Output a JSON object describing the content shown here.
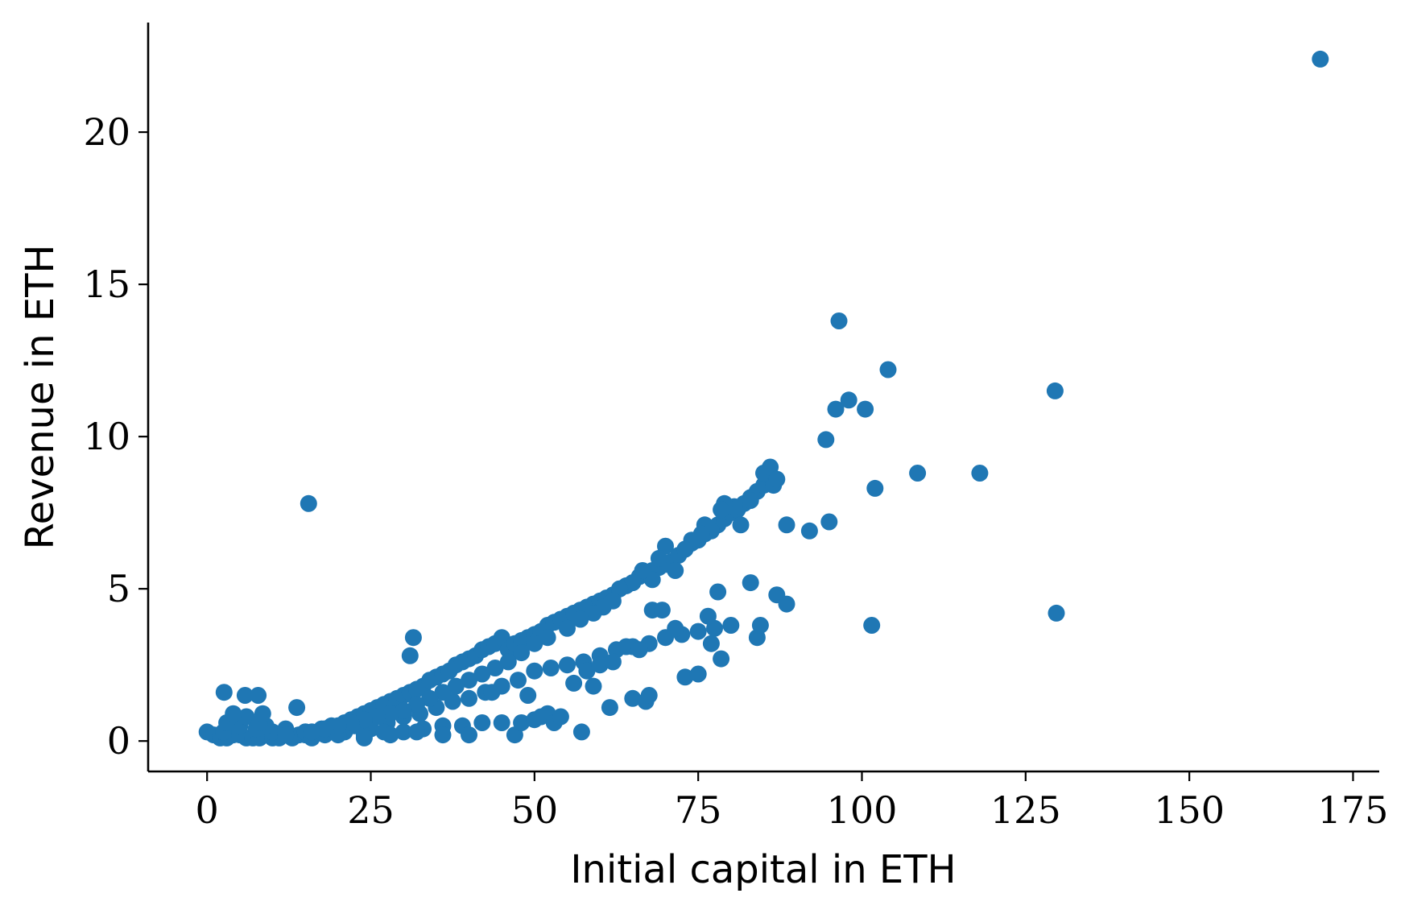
{
  "chart_data": {
    "type": "scatter",
    "title": "",
    "xlabel": "Initial capital in ETH",
    "ylabel": "Revenue in ETH",
    "xlim": [
      -9,
      179
    ],
    "ylim": [
      -1,
      23.6
    ],
    "xticks": [
      0,
      25,
      50,
      75,
      100,
      125,
      150,
      175
    ],
    "yticks": [
      0,
      5,
      10,
      15,
      20
    ],
    "xtick_labels": [
      "0",
      "25",
      "50",
      "75",
      "100",
      "125",
      "150",
      "175"
    ],
    "ytick_labels": [
      "0",
      "5",
      "10",
      "15",
      "20"
    ],
    "grid": false,
    "legend": "none",
    "color": "#1f77b4",
    "series": [
      {
        "x": [
          0.0,
          1.0,
          2.0,
          3.0,
          4.0,
          5.0,
          6.0,
          7.0,
          8.0,
          9.0,
          10.0,
          11.0,
          12.0,
          13.0,
          14.0,
          15.0,
          16.0,
          17.0,
          18.0,
          19.0,
          20.0,
          21.0,
          22.0,
          23.0,
          24.0,
          25.0,
          26.0,
          27.0,
          28.0,
          29.0,
          30.0,
          31.0,
          32.0,
          33.0,
          34.0,
          35.0,
          36.0,
          37.0,
          38.0,
          39.0,
          40.0,
          41.0,
          42.0,
          43.0,
          44.0,
          45.0,
          46.0,
          47.0,
          48.0,
          49.0,
          50.0,
          51.0,
          52.0,
          53.0,
          54.0,
          55.0,
          56.0,
          57.0,
          58.0,
          59.0,
          60.0,
          61.0,
          62.0,
          63.0,
          64.0,
          65.0,
          66.0,
          67.0,
          68.0,
          69.0,
          70.0,
          71.0,
          72.0,
          73.0,
          74.0,
          75.0,
          76.0,
          77.0,
          78.0,
          79.0,
          80.0,
          81.0,
          82.0,
          83.0,
          84.0,
          85.0,
          86.0,
          2.5,
          5.0,
          7.5,
          10.0,
          12.5,
          15.0,
          17.5,
          20.0,
          22.5,
          25.0,
          27.5,
          30.0,
          32.5,
          35.0,
          37.5,
          40.0,
          42.5,
          45.0,
          47.5,
          50.0,
          52.5,
          55.0,
          57.5,
          60.0,
          62.5,
          65.0,
          67.5,
          70.0,
          72.5,
          75.0,
          77.5,
          80.0,
          3.0,
          6.0,
          9.0,
          12.0,
          15.0,
          18.0,
          21.0,
          24.0,
          27.0,
          30.0,
          33.0,
          36.0,
          39.0,
          42.0,
          45.0,
          4.0,
          8.0,
          12.0,
          16.0,
          20.0,
          24.0,
          28.0,
          32.0,
          36.0,
          40.0,
          2.6,
          5.8,
          7.8,
          13.7,
          15.5,
          31.5,
          31.0,
          8.5,
          43.5,
          47.0,
          48.0,
          49.0,
          50.0,
          51.0,
          52.0,
          53.0,
          54.0,
          56.0,
          57.2,
          58.0,
          59.0,
          60.0,
          61.5,
          62.0,
          64.0,
          65.0,
          66.0,
          67.0,
          67.5,
          68.0,
          69.5,
          71.5,
          73.0,
          75.0,
          76.5,
          77.0,
          78.5,
          78.0,
          83.0,
          84.0,
          84.5,
          87.0,
          88.5,
          92.0,
          95.0,
          96.0,
          98.0,
          100.5,
          101.5,
          102.0,
          96.5,
          104.0,
          108.5,
          118.0,
          129.5,
          129.7,
          170.0,
          94.5,
          88.5,
          85.0,
          86.0,
          86.5,
          87.0,
          83.0,
          81.5,
          80.5,
          79.0,
          78.5,
          77.0,
          76.0,
          75.5,
          74.0,
          73.0,
          71.5,
          70.0,
          69.0,
          68.0,
          66.5,
          65.0,
          63.0,
          62.0,
          60.5,
          59.0,
          57.0,
          55.0,
          52.0,
          50.0,
          48.0,
          46.0,
          44.0,
          42.0,
          40.0,
          38.0,
          36.0,
          34.0,
          32.0,
          30.0,
          28.0,
          26.0,
          24.0,
          22.0,
          20.0,
          18.0,
          16.0
        ],
        "y": [
          0.3,
          0.2,
          0.1,
          0.1,
          0.2,
          0.2,
          0.1,
          0.1,
          0.1,
          0.2,
          0.1,
          0.1,
          0.2,
          0.1,
          0.2,
          0.2,
          0.3,
          0.3,
          0.4,
          0.5,
          0.5,
          0.6,
          0.7,
          0.8,
          0.9,
          1.0,
          1.1,
          1.2,
          1.3,
          1.4,
          1.5,
          1.6,
          1.7,
          1.8,
          2.0,
          2.1,
          2.2,
          2.3,
          2.5,
          2.6,
          2.7,
          2.8,
          3.0,
          3.1,
          3.2,
          3.4,
          3.0,
          3.2,
          3.3,
          3.4,
          3.5,
          3.6,
          3.8,
          3.9,
          4.0,
          4.1,
          4.2,
          4.3,
          4.4,
          4.5,
          4.6,
          4.7,
          4.8,
          5.0,
          5.1,
          5.2,
          5.4,
          5.5,
          5.6,
          5.7,
          5.8,
          5.9,
          6.1,
          6.3,
          6.5,
          6.6,
          6.8,
          7.0,
          7.1,
          7.3,
          7.5,
          7.6,
          7.8,
          8.0,
          8.2,
          8.4,
          8.6,
          0.3,
          0.5,
          0.4,
          0.3,
          0.2,
          0.3,
          0.4,
          0.3,
          0.5,
          0.4,
          0.6,
          0.8,
          0.9,
          1.1,
          1.3,
          1.4,
          1.6,
          1.8,
          2.0,
          2.3,
          2.4,
          2.5,
          2.6,
          2.8,
          3.0,
          3.1,
          3.2,
          3.4,
          3.5,
          3.6,
          3.7,
          3.8,
          0.6,
          0.8,
          0.5,
          0.4,
          0.3,
          0.2,
          0.3,
          0.2,
          0.3,
          0.3,
          0.4,
          0.5,
          0.5,
          0.6,
          0.6,
          0.9,
          0.6,
          0.2,
          0.1,
          0.2,
          0.1,
          0.2,
          0.3,
          0.2,
          0.2,
          1.6,
          1.5,
          1.5,
          1.1,
          7.8,
          3.4,
          2.8,
          0.9,
          1.6,
          0.2,
          0.6,
          1.5,
          0.7,
          0.8,
          0.9,
          0.6,
          0.8,
          1.9,
          0.3,
          2.3,
          1.8,
          2.5,
          1.1,
          2.6,
          3.1,
          1.4,
          3.0,
          1.3,
          1.5,
          4.3,
          4.3,
          3.7,
          2.1,
          2.2,
          4.1,
          3.2,
          2.7,
          4.9,
          5.2,
          3.4,
          3.8,
          4.8,
          4.5,
          6.9,
          7.2,
          10.9,
          11.2,
          10.9,
          3.8,
          8.3,
          13.8,
          12.2,
          8.8,
          8.8,
          11.5,
          4.2,
          22.4,
          9.9,
          7.1,
          8.8,
          9.0,
          8.4,
          8.6,
          7.9,
          7.1,
          7.7,
          7.8,
          7.6,
          6.9,
          7.1,
          6.8,
          6.6,
          6.3,
          5.6,
          6.4,
          6.0,
          5.3,
          5.6,
          5.2,
          5.0,
          4.6,
          4.4,
          4.2,
          4.0,
          3.7,
          3.4,
          3.2,
          2.9,
          2.6,
          2.4,
          2.2,
          2.0,
          1.8,
          1.6,
          1.4,
          1.2,
          1.0,
          0.9,
          0.8,
          0.7,
          0.6,
          0.5,
          0.4,
          0.3
        ]
      }
    ]
  }
}
